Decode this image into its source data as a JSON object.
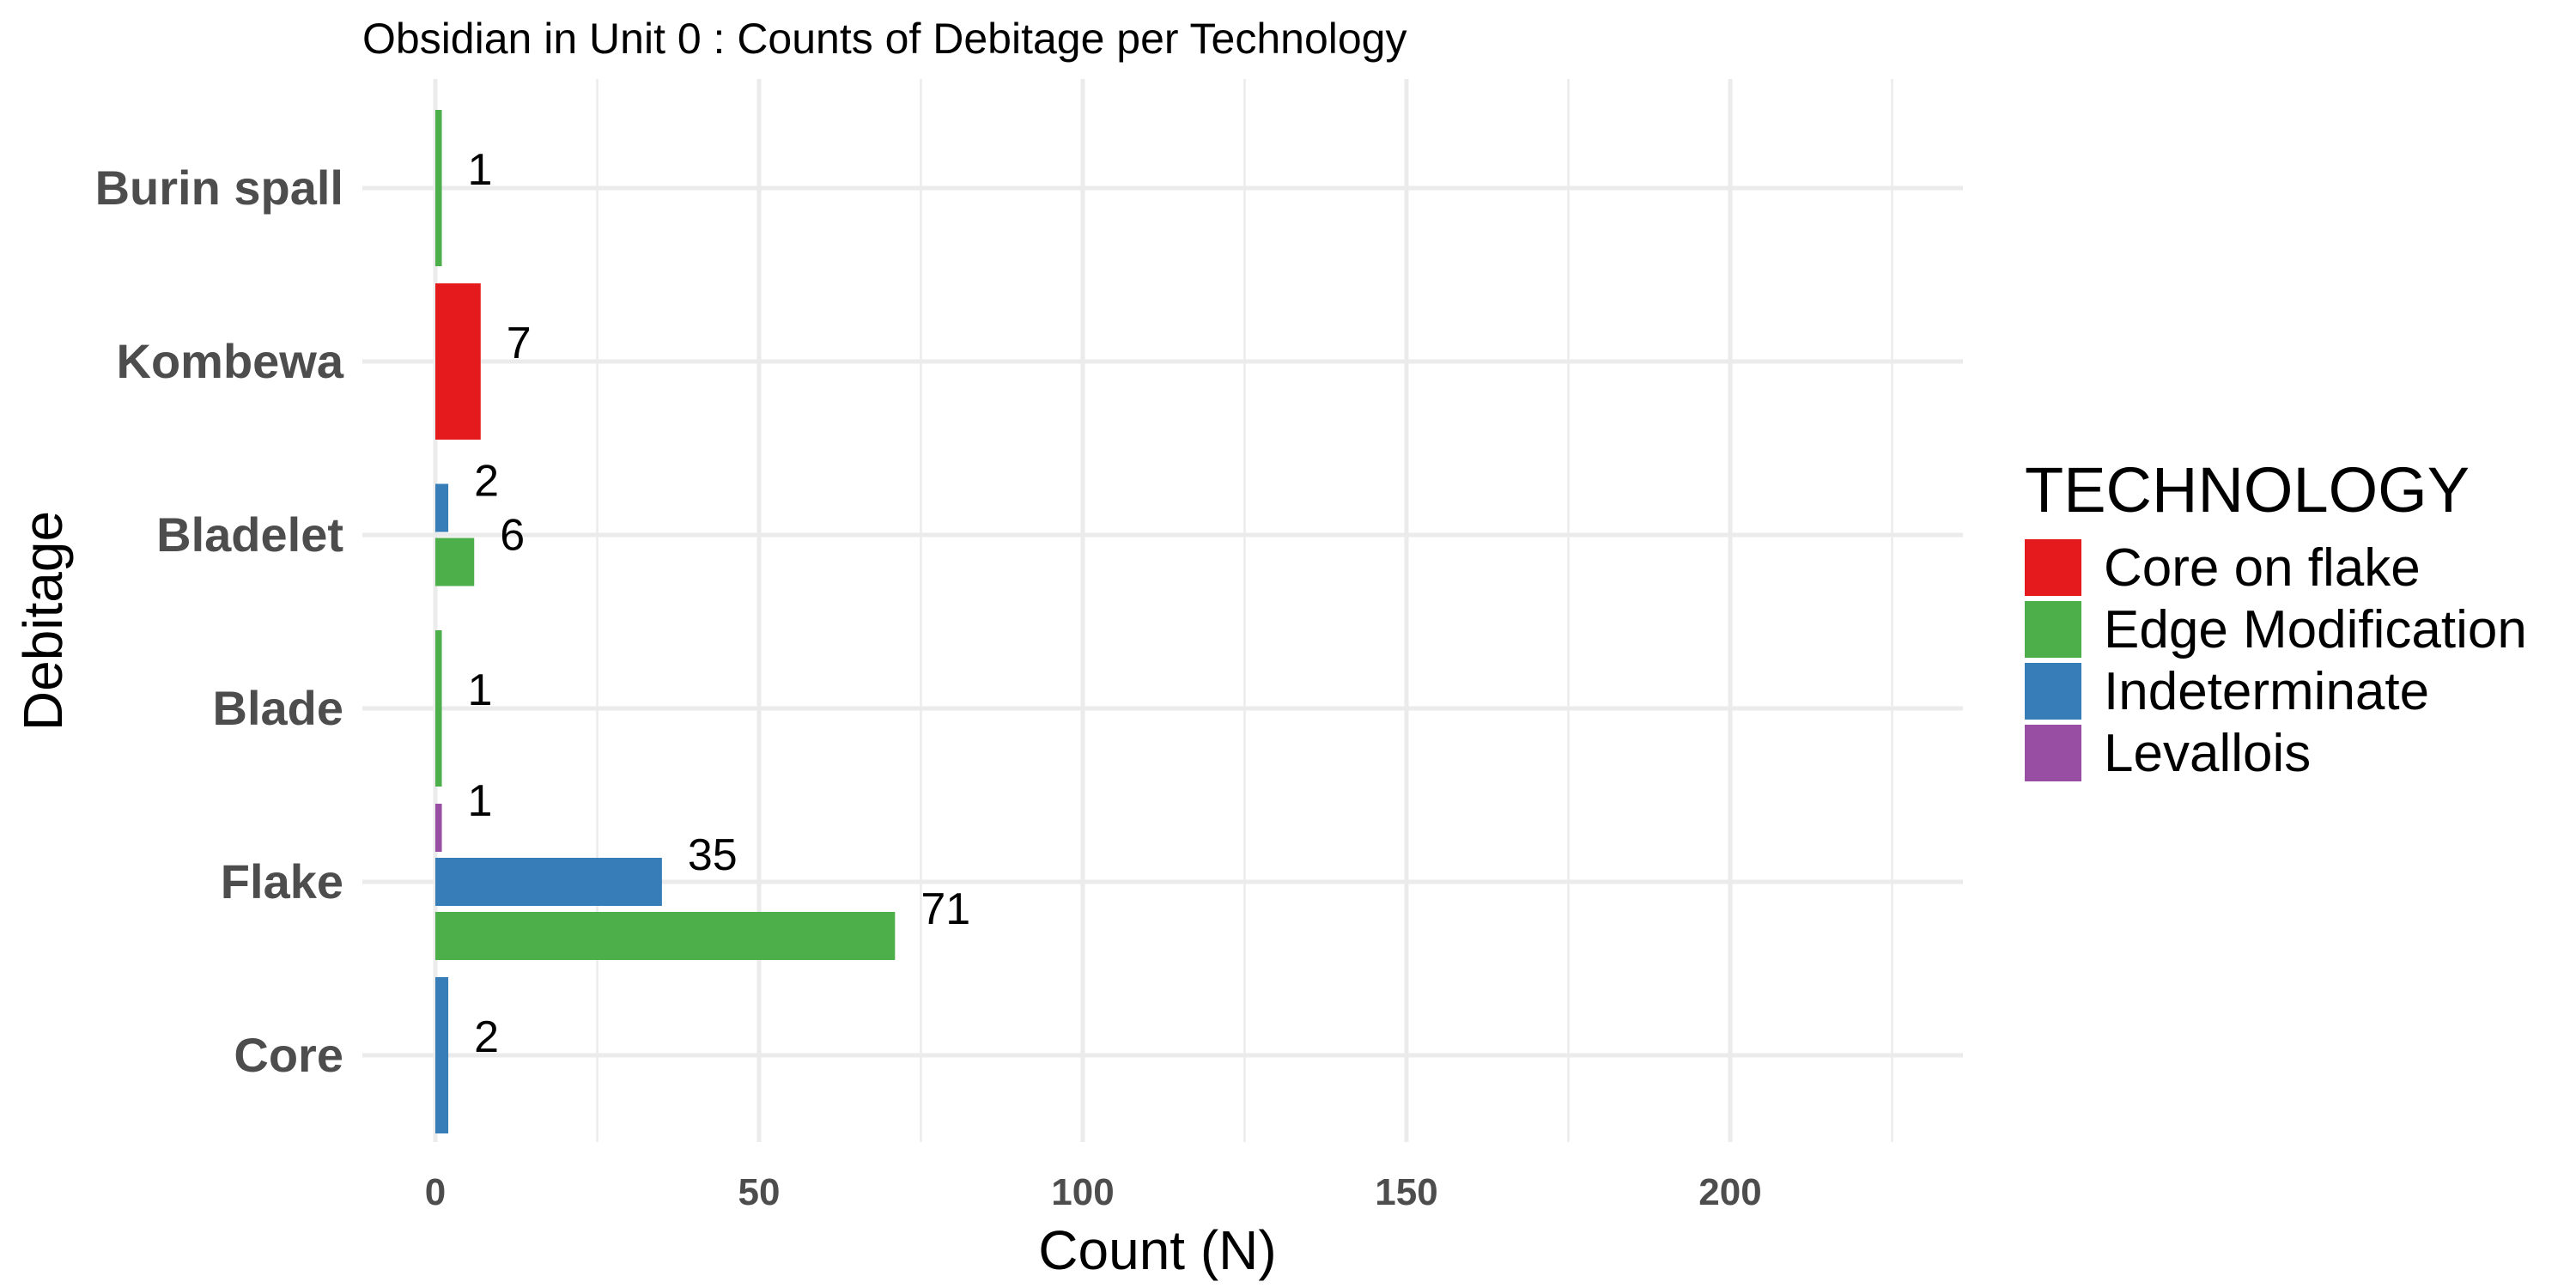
{
  "chart_data": {
    "type": "bar",
    "orientation": "horizontal",
    "title": "Obsidian in Unit 0 : Counts of Debitage per Technology",
    "xlabel": "Count (N)",
    "ylabel": "Debitage",
    "xlim": [
      0,
      235
    ],
    "xticks": [
      "0",
      "50",
      "100",
      "150",
      "200"
    ],
    "categories": [
      "Burin spall",
      "Kombewa",
      "Bladelet",
      "Blade",
      "Flake",
      "Core"
    ],
    "grid": true,
    "legend": {
      "title": "TECHNOLOGY",
      "position": "right",
      "entries": [
        {
          "name": "Core on flake",
          "color": "#e41a1c"
        },
        {
          "name": "Edge Modification",
          "color": "#4daf4a"
        },
        {
          "name": "Indeterminate",
          "color": "#377eb8"
        },
        {
          "name": "Levallois",
          "color": "#984ea3"
        }
      ]
    },
    "bars": [
      {
        "category": "Burin spall",
        "series": "Edge Modification",
        "value": 1,
        "label": "1"
      },
      {
        "category": "Kombewa",
        "series": "Core on flake",
        "value": 7,
        "label": "7"
      },
      {
        "category": "Bladelet",
        "series": "Indeterminate",
        "value": 2,
        "label": "2"
      },
      {
        "category": "Bladelet",
        "series": "Edge Modification",
        "value": 6,
        "label": "6"
      },
      {
        "category": "Blade",
        "series": "Edge Modification",
        "value": 1,
        "label": "1"
      },
      {
        "category": "Flake",
        "series": "Levallois",
        "value": 1,
        "label": "1"
      },
      {
        "category": "Flake",
        "series": "Indeterminate",
        "value": 35,
        "label": "35"
      },
      {
        "category": "Flake",
        "series": "Edge Modification",
        "value": 71,
        "label": "71"
      },
      {
        "category": "Core",
        "series": "Indeterminate",
        "value": 2,
        "label": "2"
      }
    ]
  }
}
